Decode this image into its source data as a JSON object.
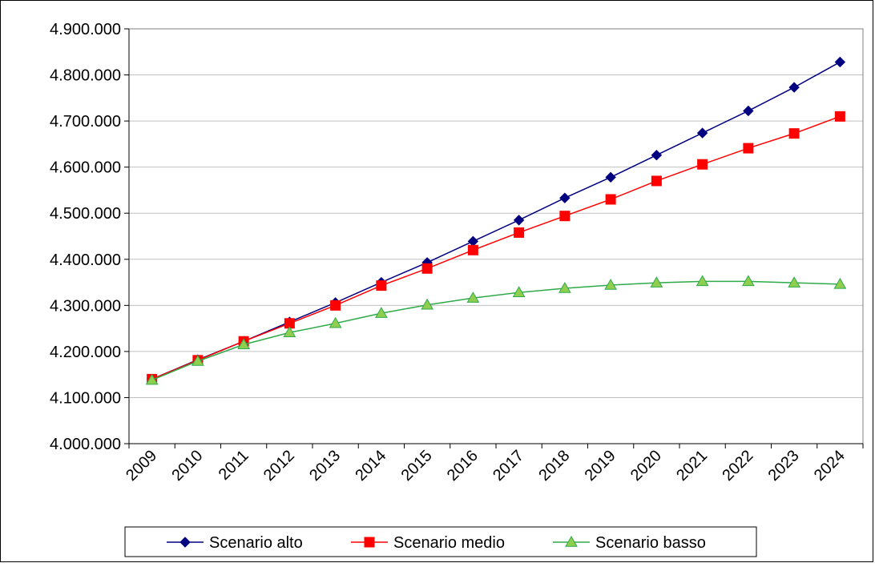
{
  "chart_data": {
    "type": "line",
    "categories": [
      "2009",
      "2010",
      "2011",
      "2012",
      "2013",
      "2014",
      "2015",
      "2016",
      "2017",
      "2018",
      "2019",
      "2020",
      "2021",
      "2022",
      "2023",
      "2024"
    ],
    "ylim": [
      4000000,
      4900000
    ],
    "yticks": [
      4000000,
      4100000,
      4200000,
      4300000,
      4400000,
      4500000,
      4600000,
      4700000,
      4800000,
      4900000
    ],
    "ytick_labels": [
      "4.000.000",
      "4.100.000",
      "4.200.000",
      "4.300.000",
      "4.400.000",
      "4.500.000",
      "4.600.000",
      "4.700.000",
      "4.800.000",
      "4.900.000"
    ],
    "grid": true,
    "legend_position": "bottom",
    "series": [
      {
        "name": "Scenario alto",
        "color": "#000080",
        "marker": "diamond",
        "values": [
          4140000,
          4182000,
          4222000,
          4264000,
          4306000,
          4350000,
          4393000,
          4439000,
          4485000,
          4533000,
          4578000,
          4626000,
          4674000,
          4722000,
          4773000,
          4828000
        ]
      },
      {
        "name": "Scenario medio",
        "color": "#ff0000",
        "marker": "square",
        "values": [
          4140000,
          4181000,
          4222000,
          4261000,
          4300000,
          4343000,
          4380000,
          4420000,
          4458000,
          4494000,
          4530000,
          4570000,
          4606000,
          4641000,
          4673000,
          4710000
        ]
      },
      {
        "name": "Scenario basso",
        "color": "#2eaa4a",
        "marker_fill": "#8fce4f",
        "marker": "triangle",
        "values": [
          4138000,
          4179000,
          4215000,
          4241000,
          4261000,
          4283000,
          4301000,
          4316000,
          4328000,
          4337000,
          4344000,
          4349000,
          4352000,
          4352000,
          4349000,
          4346000
        ]
      }
    ]
  }
}
